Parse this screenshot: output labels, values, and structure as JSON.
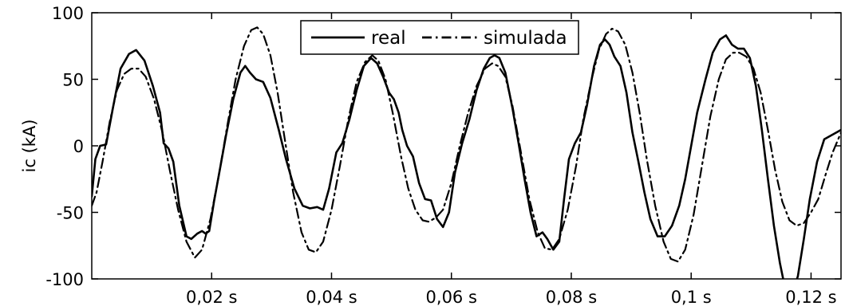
{
  "chart_data": {
    "type": "line",
    "title": "",
    "xlabel": "",
    "ylabel": "ic (kA)",
    "xlim": [
      0,
      0.125
    ],
    "ylim": [
      -100,
      100
    ],
    "grid": false,
    "legend": "top-center",
    "x_ticks": [
      {
        "value": 0.02,
        "label": "0,02 s"
      },
      {
        "value": 0.04,
        "label": "0,04 s"
      },
      {
        "value": 0.06,
        "label": "0,06 s"
      },
      {
        "value": 0.08,
        "label": "0,08 s"
      },
      {
        "value": 0.1,
        "label": "0,1 s"
      },
      {
        "value": 0.12,
        "label": "0,12 s"
      }
    ],
    "y_ticks": [
      {
        "value": 100,
        "label": "100"
      },
      {
        "value": 50,
        "label": "50"
      },
      {
        "value": 0,
        "label": "0"
      },
      {
        "value": -50,
        "label": "-50"
      },
      {
        "value": -100,
        "label": "-100"
      }
    ],
    "series": [
      {
        "name": "real",
        "style": "solid",
        "color": "#000000",
        "points": [
          [
            0,
            -38
          ],
          [
            0.0006,
            -10
          ],
          [
            0.0014,
            0
          ],
          [
            0.0024,
            1
          ],
          [
            0.0036,
            30
          ],
          [
            0.0048,
            58
          ],
          [
            0.0062,
            69
          ],
          [
            0.0074,
            72
          ],
          [
            0.0088,
            64
          ],
          [
            0.0102,
            45
          ],
          [
            0.0114,
            25
          ],
          [
            0.012,
            2
          ],
          [
            0.0128,
            -2
          ],
          [
            0.0136,
            -12
          ],
          [
            0.0146,
            -45
          ],
          [
            0.0158,
            -68
          ],
          [
            0.0166,
            -70
          ],
          [
            0.0176,
            -66
          ],
          [
            0.0184,
            -64
          ],
          [
            0.019,
            -66
          ],
          [
            0.0196,
            -64
          ],
          [
            0.0204,
            -42
          ],
          [
            0.0216,
            -12
          ],
          [
            0.0224,
            8
          ],
          [
            0.0236,
            35
          ],
          [
            0.0248,
            55
          ],
          [
            0.0256,
            60
          ],
          [
            0.0264,
            55
          ],
          [
            0.0274,
            50
          ],
          [
            0.0286,
            48
          ],
          [
            0.0298,
            36
          ],
          [
            0.0312,
            12
          ],
          [
            0.0324,
            -10
          ],
          [
            0.0338,
            -32
          ],
          [
            0.0352,
            -45
          ],
          [
            0.0364,
            -47
          ],
          [
            0.0376,
            -46
          ],
          [
            0.0386,
            -48
          ],
          [
            0.0396,
            -32
          ],
          [
            0.0408,
            -5
          ],
          [
            0.0418,
            2
          ],
          [
            0.043,
            20
          ],
          [
            0.0442,
            42
          ],
          [
            0.0454,
            60
          ],
          [
            0.0466,
            66
          ],
          [
            0.0476,
            62
          ],
          [
            0.0486,
            52
          ],
          [
            0.0496,
            40
          ],
          [
            0.0504,
            35
          ],
          [
            0.0512,
            25
          ],
          [
            0.0518,
            12
          ],
          [
            0.0526,
            0
          ],
          [
            0.0536,
            -8
          ],
          [
            0.0546,
            -28
          ],
          [
            0.0556,
            -40
          ],
          [
            0.0566,
            -41
          ],
          [
            0.0576,
            -55
          ],
          [
            0.0586,
            -61
          ],
          [
            0.0596,
            -50
          ],
          [
            0.0606,
            -20
          ],
          [
            0.0618,
            2
          ],
          [
            0.063,
            20
          ],
          [
            0.0642,
            42
          ],
          [
            0.0654,
            58
          ],
          [
            0.0664,
            66
          ],
          [
            0.0672,
            68
          ],
          [
            0.068,
            66
          ],
          [
            0.069,
            55
          ],
          [
            0.0702,
            28
          ],
          [
            0.0712,
            2
          ],
          [
            0.0722,
            -25
          ],
          [
            0.0732,
            -50
          ],
          [
            0.0742,
            -68
          ],
          [
            0.0752,
            -65
          ],
          [
            0.076,
            -70
          ],
          [
            0.077,
            -78
          ],
          [
            0.078,
            -72
          ],
          [
            0.0788,
            -40
          ],
          [
            0.0796,
            -10
          ],
          [
            0.0806,
            2
          ],
          [
            0.0816,
            10
          ],
          [
            0.0826,
            30
          ],
          [
            0.0838,
            60
          ],
          [
            0.0848,
            76
          ],
          [
            0.0856,
            80
          ],
          [
            0.0864,
            76
          ],
          [
            0.0872,
            67
          ],
          [
            0.0882,
            60
          ],
          [
            0.0892,
            40
          ],
          [
            0.0902,
            10
          ],
          [
            0.0912,
            -12
          ],
          [
            0.0922,
            -35
          ],
          [
            0.0932,
            -55
          ],
          [
            0.0944,
            -68
          ],
          [
            0.0956,
            -68
          ],
          [
            0.0968,
            -60
          ],
          [
            0.098,
            -45
          ],
          [
            0.099,
            -25
          ],
          [
            0.1,
            0
          ],
          [
            0.101,
            25
          ],
          [
            0.1024,
            50
          ],
          [
            0.1036,
            70
          ],
          [
            0.1048,
            80
          ],
          [
            0.1058,
            83
          ],
          [
            0.1068,
            76
          ],
          [
            0.1078,
            73
          ],
          [
            0.1088,
            73
          ],
          [
            0.1098,
            66
          ],
          [
            0.1108,
            45
          ],
          [
            0.1118,
            12
          ],
          [
            0.1128,
            -25
          ],
          [
            0.1138,
            -60
          ],
          [
            0.1148,
            -88
          ],
          [
            0.1158,
            -110
          ],
          [
            0.1168,
            -112
          ],
          [
            0.1178,
            -98
          ],
          [
            0.1188,
            -70
          ],
          [
            0.1198,
            -40
          ],
          [
            0.121,
            -12
          ],
          [
            0.1222,
            5
          ],
          [
            0.125,
            12
          ]
        ]
      },
      {
        "name": "simulada",
        "style": "dash-dot",
        "color": "#000000",
        "points": [
          [
            0,
            -45
          ],
          [
            0.0008,
            -35
          ],
          [
            0.0018,
            -12
          ],
          [
            0.003,
            18
          ],
          [
            0.0042,
            42
          ],
          [
            0.0054,
            54
          ],
          [
            0.0066,
            58
          ],
          [
            0.0078,
            58
          ],
          [
            0.009,
            52
          ],
          [
            0.0104,
            35
          ],
          [
            0.0118,
            10
          ],
          [
            0.013,
            -18
          ],
          [
            0.0144,
            -48
          ],
          [
            0.0158,
            -72
          ],
          [
            0.0172,
            -84
          ],
          [
            0.0184,
            -78
          ],
          [
            0.0198,
            -55
          ],
          [
            0.0212,
            -22
          ],
          [
            0.0226,
            15
          ],
          [
            0.024,
            50
          ],
          [
            0.0254,
            75
          ],
          [
            0.0266,
            87
          ],
          [
            0.0276,
            89
          ],
          [
            0.0286,
            84
          ],
          [
            0.0298,
            68
          ],
          [
            0.031,
            40
          ],
          [
            0.0322,
            5
          ],
          [
            0.0336,
            -35
          ],
          [
            0.035,
            -65
          ],
          [
            0.0362,
            -78
          ],
          [
            0.0374,
            -80
          ],
          [
            0.0386,
            -72
          ],
          [
            0.04,
            -48
          ],
          [
            0.0414,
            -15
          ],
          [
            0.0428,
            20
          ],
          [
            0.0442,
            48
          ],
          [
            0.0456,
            63
          ],
          [
            0.0468,
            68
          ],
          [
            0.0478,
            64
          ],
          [
            0.049,
            50
          ],
          [
            0.0502,
            25
          ],
          [
            0.0516,
            -8
          ],
          [
            0.0528,
            -32
          ],
          [
            0.054,
            -48
          ],
          [
            0.0552,
            -56
          ],
          [
            0.0562,
            -57
          ],
          [
            0.0574,
            -54
          ],
          [
            0.0586,
            -48
          ],
          [
            0.06,
            -28
          ],
          [
            0.0614,
            0
          ],
          [
            0.0628,
            25
          ],
          [
            0.0642,
            45
          ],
          [
            0.0656,
            58
          ],
          [
            0.0668,
            62
          ],
          [
            0.0678,
            60
          ],
          [
            0.069,
            52
          ],
          [
            0.0702,
            30
          ],
          [
            0.0716,
            -5
          ],
          [
            0.073,
            -40
          ],
          [
            0.0744,
            -65
          ],
          [
            0.0756,
            -77
          ],
          [
            0.0768,
            -78
          ],
          [
            0.078,
            -70
          ],
          [
            0.0794,
            -48
          ],
          [
            0.0808,
            -15
          ],
          [
            0.082,
            20
          ],
          [
            0.0834,
            50
          ],
          [
            0.0846,
            72
          ],
          [
            0.0858,
            84
          ],
          [
            0.0868,
            88
          ],
          [
            0.0878,
            86
          ],
          [
            0.089,
            76
          ],
          [
            0.0902,
            55
          ],
          [
            0.0914,
            25
          ],
          [
            0.0926,
            -10
          ],
          [
            0.094,
            -45
          ],
          [
            0.0954,
            -72
          ],
          [
            0.0966,
            -85
          ],
          [
            0.0978,
            -87
          ],
          [
            0.099,
            -78
          ],
          [
            0.1004,
            -52
          ],
          [
            0.1018,
            -15
          ],
          [
            0.1032,
            22
          ],
          [
            0.1046,
            50
          ],
          [
            0.1058,
            65
          ],
          [
            0.107,
            70
          ],
          [
            0.108,
            70
          ],
          [
            0.1092,
            67
          ],
          [
            0.1104,
            58
          ],
          [
            0.1116,
            40
          ],
          [
            0.1128,
            12
          ],
          [
            0.114,
            -18
          ],
          [
            0.1152,
            -42
          ],
          [
            0.1164,
            -56
          ],
          [
            0.1176,
            -60
          ],
          [
            0.1188,
            -58
          ],
          [
            0.12,
            -50
          ],
          [
            0.1212,
            -40
          ],
          [
            0.1224,
            -22
          ],
          [
            0.1236,
            -5
          ],
          [
            0.125,
            10
          ]
        ]
      }
    ]
  }
}
